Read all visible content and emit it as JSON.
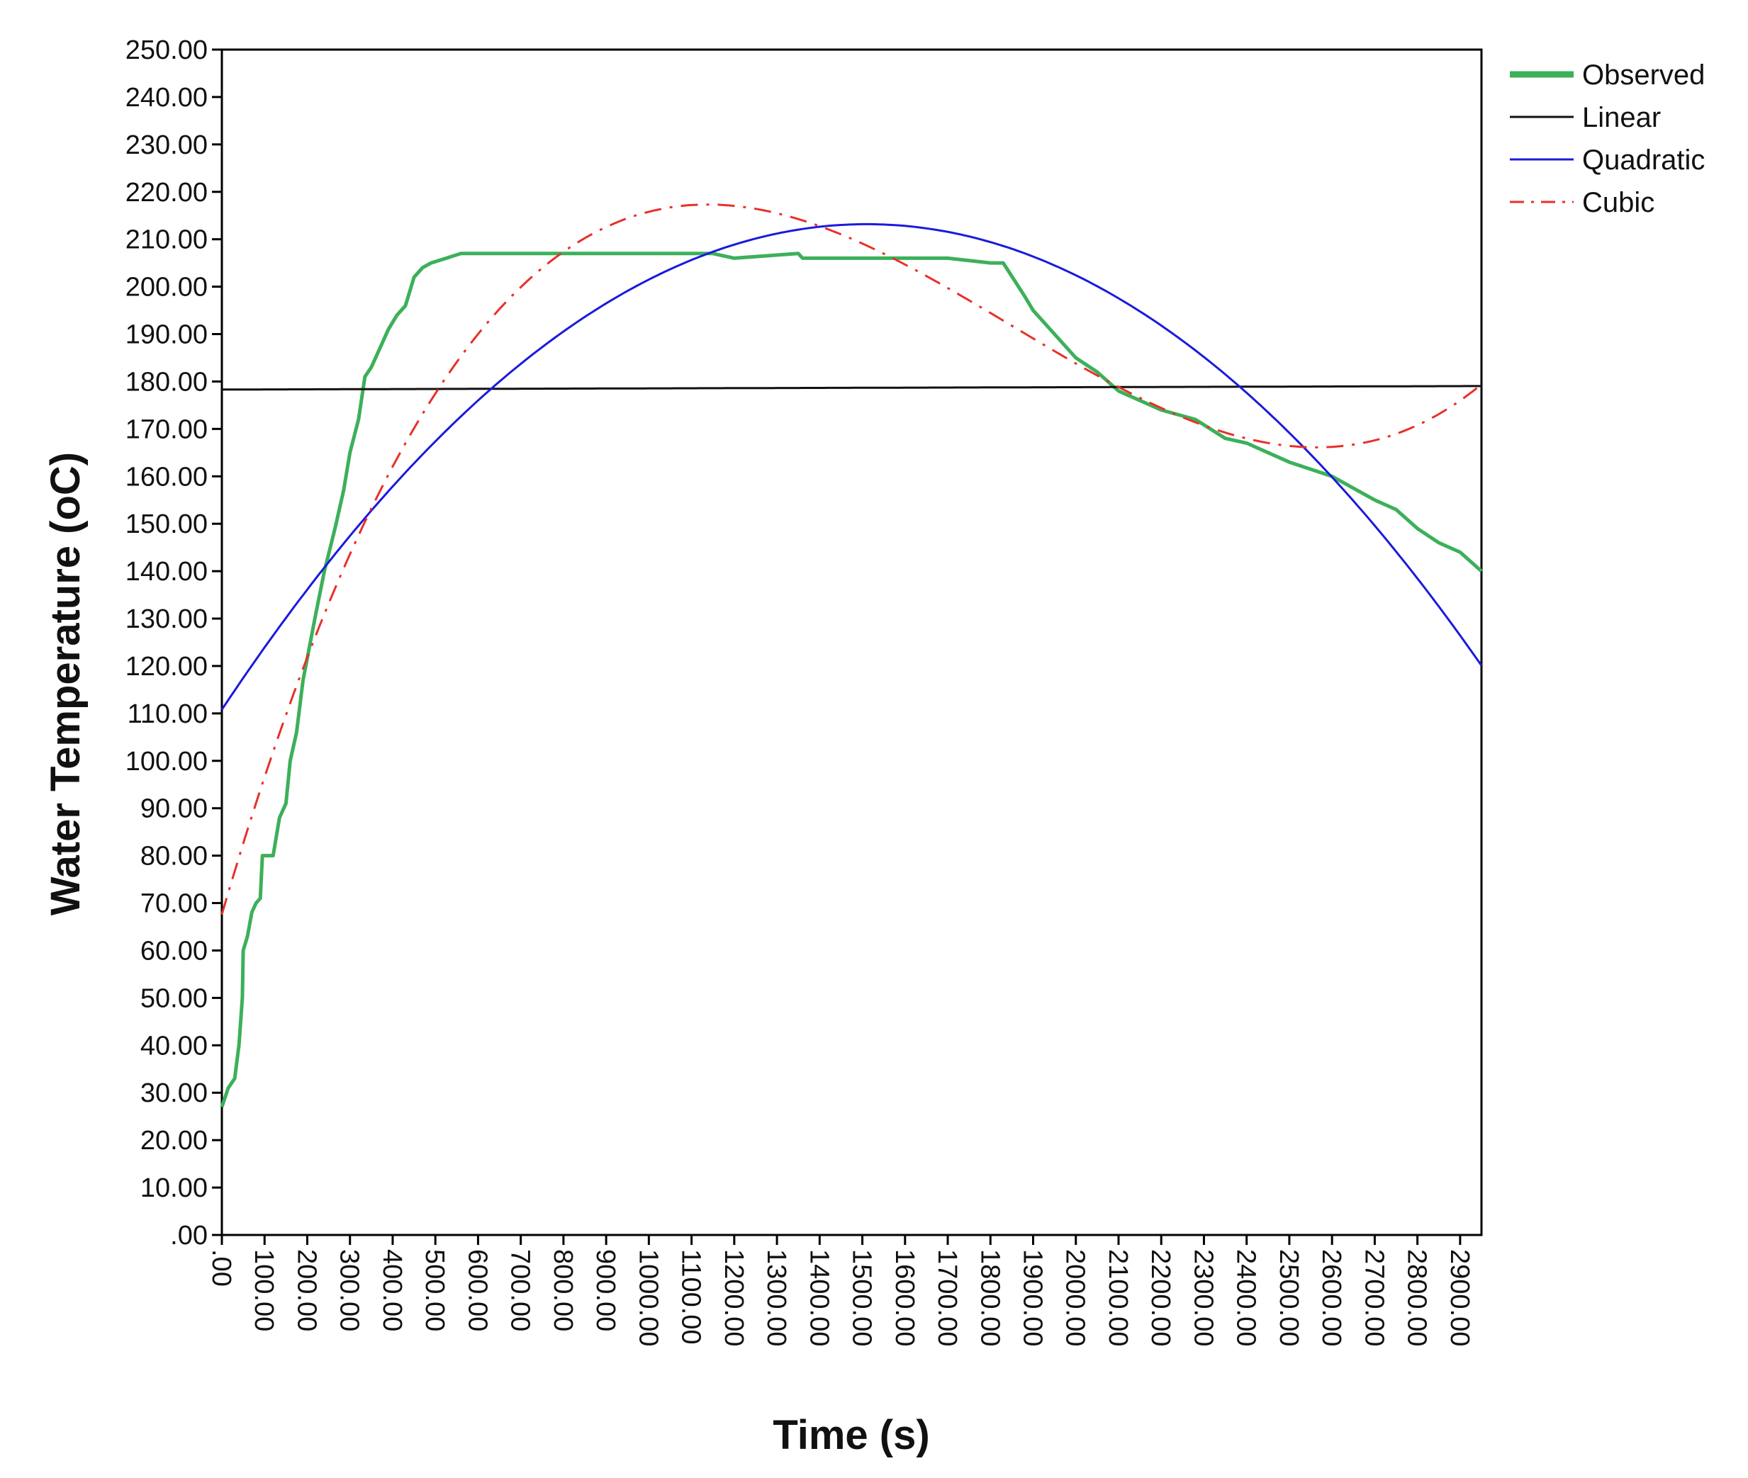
{
  "chart_data": {
    "type": "line",
    "xlabel": "Time (s)",
    "ylabel": "Water Temperature (oC)",
    "xlim": [
      0,
      2950
    ],
    "ylim": [
      0,
      250
    ],
    "x_ticks": [
      ".00",
      "100.00",
      "200.00",
      "300.00",
      "400.00",
      "500.00",
      "600.00",
      "700.00",
      "800.00",
      "900.00",
      "1000.00",
      "1100.00",
      "1200.00",
      "1300.00",
      "1400.00",
      "1500.00",
      "1600.00",
      "1700.00",
      "1800.00",
      "1900.00",
      "2000.00",
      "2100.00",
      "2200.00",
      "2300.00",
      "2400.00",
      "2500.00",
      "2600.00",
      "2700.00",
      "2800.00",
      "2900.00"
    ],
    "y_ticks": [
      ".00",
      "10.00",
      "20.00",
      "30.00",
      "40.00",
      "50.00",
      "60.00",
      "70.00",
      "80.00",
      "90.00",
      "100.00",
      "110.00",
      "120.00",
      "130.00",
      "140.00",
      "150.00",
      "160.00",
      "170.00",
      "180.00",
      "190.00",
      "200.00",
      "210.00",
      "220.00",
      "230.00",
      "240.00",
      "250.00"
    ],
    "grid": false,
    "legend_position": "top-right outside",
    "series": [
      {
        "name": "Observed",
        "color": "#3cb05a",
        "style": "solid-thick",
        "points": [
          [
            0,
            27
          ],
          [
            15,
            31
          ],
          [
            30,
            33
          ],
          [
            40,
            40
          ],
          [
            48,
            50
          ],
          [
            50,
            60
          ],
          [
            60,
            63
          ],
          [
            70,
            68
          ],
          [
            80,
            70
          ],
          [
            90,
            71
          ],
          [
            95,
            80
          ],
          [
            120,
            80
          ],
          [
            135,
            88
          ],
          [
            150,
            91
          ],
          [
            160,
            100
          ],
          [
            175,
            106
          ],
          [
            190,
            117
          ],
          [
            205,
            124
          ],
          [
            220,
            131
          ],
          [
            240,
            140
          ],
          [
            265,
            149
          ],
          [
            285,
            157
          ],
          [
            300,
            165
          ],
          [
            320,
            172
          ],
          [
            335,
            181
          ],
          [
            350,
            183
          ],
          [
            370,
            187
          ],
          [
            390,
            191
          ],
          [
            410,
            194
          ],
          [
            430,
            196
          ],
          [
            450,
            202
          ],
          [
            470,
            204
          ],
          [
            490,
            205
          ],
          [
            560,
            207
          ],
          [
            700,
            207
          ],
          [
            900,
            207
          ],
          [
            1150,
            207
          ],
          [
            1200,
            206
          ],
          [
            1350,
            207
          ],
          [
            1360,
            206
          ],
          [
            1500,
            206
          ],
          [
            1700,
            206
          ],
          [
            1800,
            205
          ],
          [
            1830,
            205
          ],
          [
            1880,
            198
          ],
          [
            1900,
            195
          ],
          [
            1950,
            190
          ],
          [
            2000,
            185
          ],
          [
            2050,
            182
          ],
          [
            2100,
            178
          ],
          [
            2150,
            176
          ],
          [
            2200,
            174
          ],
          [
            2280,
            172
          ],
          [
            2350,
            168
          ],
          [
            2400,
            167
          ],
          [
            2500,
            163
          ],
          [
            2600,
            160
          ],
          [
            2700,
            155
          ],
          [
            2750,
            153
          ],
          [
            2800,
            149
          ],
          [
            2850,
            146
          ],
          [
            2900,
            144
          ],
          [
            2950,
            140
          ]
        ]
      },
      {
        "name": "Linear",
        "color": "#111111",
        "style": "solid",
        "equation": {
          "type": "poly",
          "coefficients": [
            178.3,
            0.00025
          ]
        }
      },
      {
        "name": "Quadratic",
        "color": "#1a1adc",
        "style": "solid",
        "equation": {
          "type": "poly",
          "coefficients": [
            110.8,
            0.1356,
            -4.49e-05
          ]
        }
      },
      {
        "name": "Cubic",
        "color": "#e8302a",
        "style": "dash-dot",
        "equation": {
          "type": "poly",
          "coefficients": [
            67.6,
            0.3089,
            -0.000196,
            3.53e-08
          ]
        }
      }
    ]
  }
}
